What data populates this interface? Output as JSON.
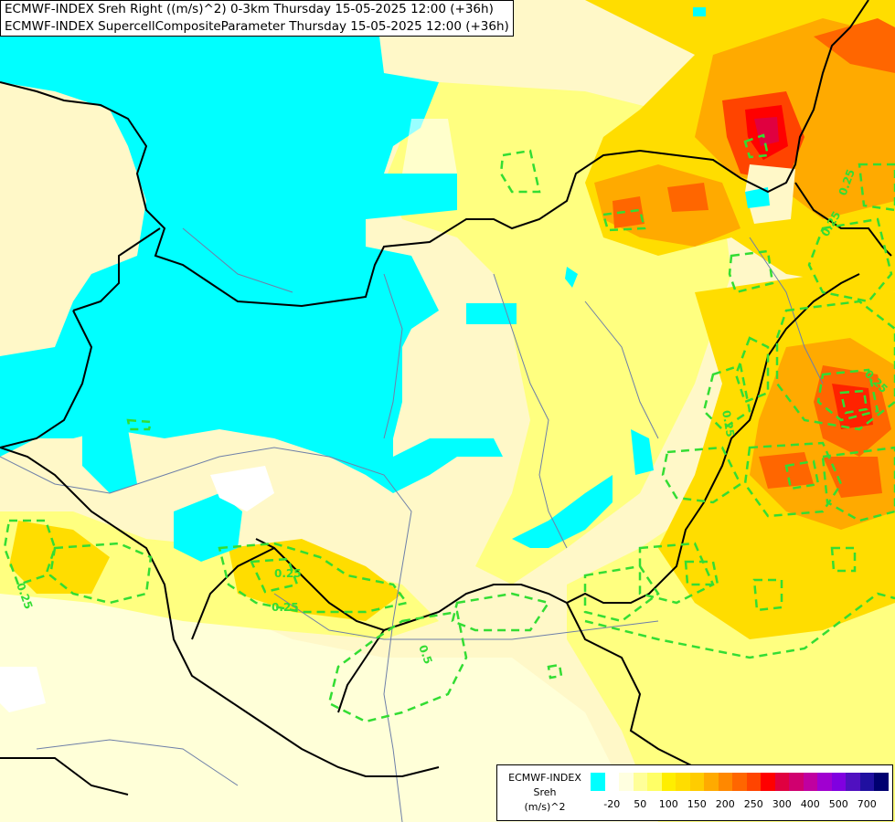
{
  "header": {
    "line1": "ECMWF-INDEX Sreh Right ((m/s)^2) 0-3km Thursday 15-05-2025 12:00 (+36h)",
    "line2": "ECMWF-INDEX SupercellCompositeParameter Thursday 15-05-2025 12:00 (+36h)"
  },
  "legend": {
    "title_line1": "ECMWF-INDEX",
    "title_line2": "Sreh",
    "unit": "(m/s)^2",
    "colors": [
      "#00ffff",
      "#ffffff",
      "#ffffe0",
      "#ffff99",
      "#ffff66",
      "#ffee00",
      "#ffdd00",
      "#ffcc00",
      "#ffaa00",
      "#ff8800",
      "#ff6600",
      "#ff4400",
      "#ff0000",
      "#e00040",
      "#d0006f",
      "#c000a0",
      "#a000d0",
      "#8000e0",
      "#5010c0",
      "#2010a0",
      "#000070"
    ],
    "ticks": [
      "-20",
      "50",
      "100",
      "150",
      "200",
      "250",
      "300",
      "400",
      "500",
      "700"
    ]
  },
  "contour_labels": [
    "0.25",
    "0.25",
    "0.5",
    "0.25",
    "0.25",
    "0.25",
    "0.25",
    "0.25"
  ]
}
